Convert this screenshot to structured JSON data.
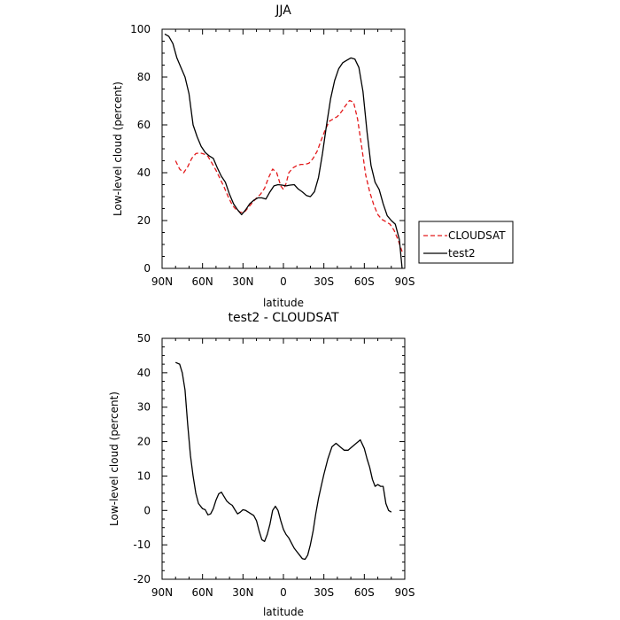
{
  "chart_data": [
    {
      "type": "line",
      "title": "JJA",
      "xlabel": "latitude",
      "ylabel": "Low-level cloud (percent)",
      "xlim": [
        -90,
        90
      ],
      "ylim": [
        0,
        100
      ],
      "xticks": [
        -90,
        -60,
        -30,
        0,
        30,
        60,
        90
      ],
      "xtick_labels": [
        "90N",
        "60N",
        "30N",
        "0",
        "30S",
        "60S",
        "90S"
      ],
      "yticks": [
        0,
        20,
        40,
        60,
        80,
        100
      ],
      "grid": false,
      "legend": "outside-right",
      "series": [
        {
          "name": "CLOUDSAT",
          "color": "#e31a1c",
          "dash": "dashed",
          "x": [
            -80,
            -77,
            -74,
            -71,
            -68,
            -65,
            -62,
            -59,
            -56,
            -53,
            -50,
            -47,
            -44,
            -41,
            -38,
            -35,
            -32,
            -29,
            -26,
            -23,
            -20,
            -17,
            -14,
            -11,
            -8,
            -5,
            -2,
            0,
            2,
            4,
            7,
            10,
            13,
            16,
            19,
            22,
            25,
            28,
            31,
            34,
            37,
            40,
            43,
            46,
            49,
            52,
            55,
            58,
            61,
            64,
            67,
            70,
            73,
            76,
            79,
            82,
            85,
            88
          ],
          "y": [
            45,
            41.5,
            40,
            42.5,
            46,
            48,
            48.3,
            47.8,
            46.8,
            44,
            41,
            37.5,
            34,
            30,
            26.5,
            24.5,
            23.5,
            23.5,
            25.5,
            27.5,
            29.5,
            31,
            33.5,
            38,
            41.5,
            40,
            34.5,
            33,
            35.5,
            40,
            42,
            43,
            43.5,
            43.5,
            44,
            46,
            49,
            53.5,
            58,
            61.5,
            62.5,
            63.5,
            65.5,
            68,
            70.2,
            69.5,
            62.5,
            51,
            39,
            32,
            26.5,
            22.5,
            20.5,
            19.5,
            18.5,
            16,
            12,
            7
          ]
        },
        {
          "name": "test2",
          "color": "#000000",
          "dash": "solid",
          "x": [
            -88,
            -85,
            -82,
            -79,
            -76,
            -73,
            -70,
            -67,
            -64,
            -61,
            -58,
            -55,
            -52,
            -49,
            -46,
            -43,
            -40,
            -37,
            -34,
            -31,
            -28,
            -25,
            -22,
            -19,
            -16,
            -13,
            -10,
            -7,
            -4,
            -1,
            2,
            5,
            8,
            11,
            14,
            17,
            20,
            23,
            26,
            29,
            32,
            35,
            38,
            41,
            44,
            47,
            50,
            53,
            56,
            59,
            62,
            65,
            68,
            71,
            74,
            77,
            80,
            83,
            86,
            88
          ],
          "y": [
            98,
            97,
            94,
            88,
            84,
            80,
            73,
            60,
            55,
            51,
            48.5,
            47,
            46,
            42,
            38.5,
            36,
            31,
            27,
            24.5,
            22.5,
            24.5,
            27,
            28.5,
            29.5,
            29.5,
            29,
            32,
            34.5,
            35,
            34.8,
            34.5,
            34.8,
            35,
            33.2,
            32,
            30.5,
            30,
            32,
            38,
            48,
            60,
            71,
            78.5,
            83.5,
            86,
            87,
            88,
            87.5,
            84,
            74,
            57,
            43,
            36,
            33,
            27,
            22,
            20,
            18.5,
            12,
            0
          ]
        }
      ]
    },
    {
      "type": "line",
      "title": "test2 - CLOUDSAT",
      "xlabel": "latitude",
      "ylabel": "Low-level cloud (percent)",
      "xlim": [
        -90,
        90
      ],
      "ylim": [
        -20,
        50
      ],
      "xticks": [
        -90,
        -60,
        -30,
        0,
        30,
        60,
        90
      ],
      "xtick_labels": [
        "90N",
        "60N",
        "30N",
        "0",
        "30S",
        "60S",
        "90S"
      ],
      "yticks": [
        -20,
        -10,
        0,
        10,
        20,
        30,
        40,
        50
      ],
      "grid": false,
      "series": [
        {
          "color": "#000000",
          "dash": "solid",
          "x": [
            -80,
            -77,
            -75,
            -73,
            -71,
            -69,
            -67,
            -65,
            -63,
            -60,
            -58,
            -56,
            -54,
            -52,
            -50,
            -48,
            -46,
            -44,
            -42,
            -40,
            -38,
            -36,
            -34,
            -32,
            -30,
            -28,
            -26,
            -24,
            -22,
            -20,
            -18,
            -16,
            -14,
            -12,
            -10,
            -8,
            -6,
            -4,
            -2,
            0,
            2,
            4,
            6,
            8,
            10,
            12,
            14,
            16,
            18,
            20,
            22,
            24,
            26,
            28,
            30,
            33,
            36,
            39,
            42,
            45,
            48,
            51,
            54,
            57,
            60,
            62,
            64,
            66,
            68,
            70,
            72,
            74,
            76,
            78,
            80
          ],
          "y": [
            43,
            42.5,
            40,
            35,
            25,
            16,
            10,
            5,
            2,
            0.5,
            0.2,
            -1.3,
            -1,
            0.5,
            3,
            4.8,
            5.3,
            4,
            2.7,
            2,
            1.5,
            0.2,
            -1,
            -0.5,
            0.2,
            0,
            -0.5,
            -1,
            -1.5,
            -3,
            -6,
            -8.5,
            -9,
            -7,
            -4,
            0,
            1.2,
            0,
            -3,
            -5.5,
            -7,
            -8,
            -9.5,
            -11,
            -12,
            -13,
            -14,
            -14.2,
            -13,
            -10,
            -6,
            -1,
            3.5,
            7,
            10.5,
            15,
            18.5,
            19.5,
            18.5,
            17.5,
            17.5,
            18.5,
            19.5,
            20.5,
            18,
            15,
            12.5,
            9,
            7,
            7.5,
            7,
            7,
            2,
            0,
            -0.5
          ]
        }
      ]
    }
  ]
}
